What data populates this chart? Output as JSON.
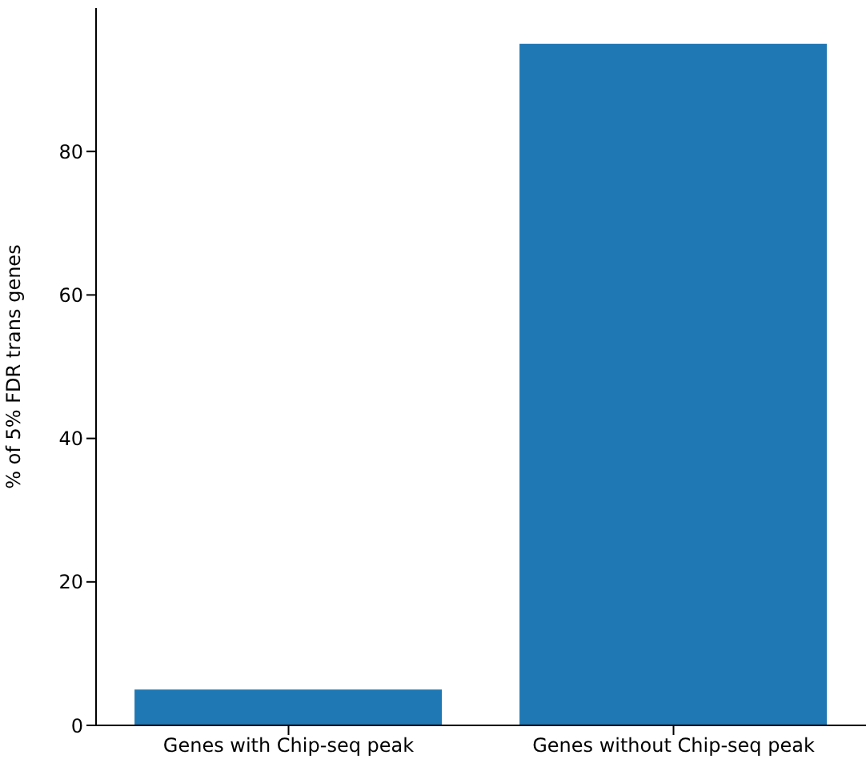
{
  "chart_data": {
    "type": "bar",
    "ylabel": "% of 5% FDR trans genes",
    "categories": [
      "Genes with Chip-seq peak",
      "Genes without Chip-seq peak"
    ],
    "values": [
      5,
      95
    ],
    "color": "#1f77b4",
    "ylim": [
      0,
      100
    ],
    "yticks": [
      0,
      20,
      40,
      60,
      80
    ],
    "grid": false,
    "legend": false
  }
}
